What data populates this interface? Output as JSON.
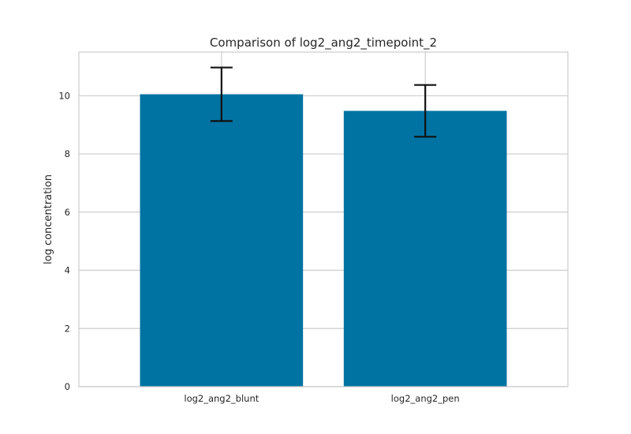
{
  "chart_data": {
    "type": "bar",
    "title": "Comparison of log2_ang2_timepoint_2",
    "xlabel": "",
    "ylabel": "log concentration",
    "categories": [
      "log2_ang2_blunt",
      "log2_ang2_pen"
    ],
    "values": [
      10.05,
      9.48
    ],
    "errors": [
      0.92,
      0.89
    ],
    "ylim": [
      0,
      11.5
    ],
    "yticks": [
      0,
      2,
      4,
      6,
      8,
      10
    ],
    "grid": true,
    "bar_color": "#0173a2",
    "errorbar_color": "#111111",
    "grid_color": "#cccccc"
  }
}
